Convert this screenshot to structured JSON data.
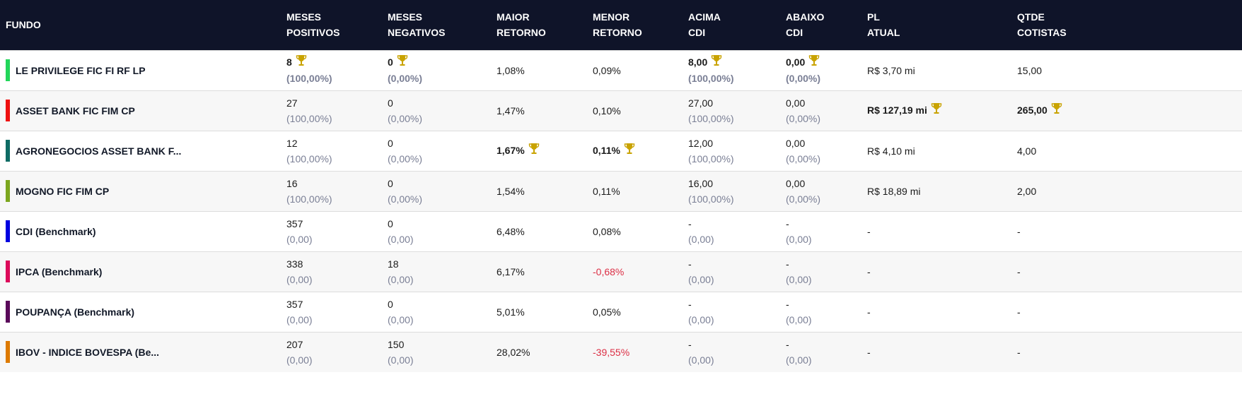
{
  "colors": {
    "header_bg": "#0f1429",
    "trophy": "#c9a300",
    "negative": "#dc2f45"
  },
  "headers": [
    {
      "l1": "FUNDO",
      "l2": ""
    },
    {
      "l1": "MESES",
      "l2": "POSITIVOS"
    },
    {
      "l1": "MESES",
      "l2": "NEGATIVOS"
    },
    {
      "l1": "MAIOR",
      "l2": "RETORNO"
    },
    {
      "l1": "MENOR",
      "l2": "RETORNO"
    },
    {
      "l1": "ACIMA",
      "l2": "CDI"
    },
    {
      "l1": "ABAIXO",
      "l2": "CDI"
    },
    {
      "l1": "PL",
      "l2": "ATUAL"
    },
    {
      "l1": "QTDE",
      "l2": "COTISTAS"
    }
  ],
  "rows": [
    {
      "name": "LE PRIVILEGE FIC FI RF LP",
      "color": "#22d65a",
      "cells": [
        {
          "main": "8",
          "sub": "(100,00%)",
          "bold": true,
          "trophy": true
        },
        {
          "main": "0",
          "sub": "(0,00%)",
          "bold": true,
          "trophy": true
        },
        {
          "main": "1,08%"
        },
        {
          "main": "0,09%"
        },
        {
          "main": "8,00",
          "sub": "(100,00%)",
          "bold": true,
          "trophy": true
        },
        {
          "main": "0,00",
          "sub": "(0,00%)",
          "bold": true,
          "trophy": true
        },
        {
          "main": "R$ 3,70 mi"
        },
        {
          "main": "15,00"
        }
      ]
    },
    {
      "name": "ASSET BANK FIC FIM CP",
      "color": "#ee1111",
      "cells": [
        {
          "main": "27",
          "sub": "(100,00%)"
        },
        {
          "main": "0",
          "sub": "(0,00%)"
        },
        {
          "main": "1,47%"
        },
        {
          "main": "0,10%"
        },
        {
          "main": "27,00",
          "sub": "(100,00%)"
        },
        {
          "main": "0,00",
          "sub": "(0,00%)"
        },
        {
          "main": "R$ 127,19 mi",
          "bold": true,
          "trophy": true
        },
        {
          "main": "265,00",
          "bold": true,
          "trophy": true
        }
      ]
    },
    {
      "name": "AGRONEGOCIOS ASSET BANK F...",
      "color": "#0e6b64",
      "cells": [
        {
          "main": "12",
          "sub": "(100,00%)"
        },
        {
          "main": "0",
          "sub": "(0,00%)"
        },
        {
          "main": "1,67%",
          "bold": true,
          "trophy": true
        },
        {
          "main": "0,11%",
          "bold": true,
          "trophy": true
        },
        {
          "main": "12,00",
          "sub": "(100,00%)"
        },
        {
          "main": "0,00",
          "sub": "(0,00%)"
        },
        {
          "main": "R$ 4,10 mi"
        },
        {
          "main": "4,00"
        }
      ]
    },
    {
      "name": "MOGNO FIC FIM CP",
      "color": "#7ca61e",
      "cells": [
        {
          "main": "16",
          "sub": "(100,00%)"
        },
        {
          "main": "0",
          "sub": "(0,00%)"
        },
        {
          "main": "1,54%"
        },
        {
          "main": "0,11%"
        },
        {
          "main": "16,00",
          "sub": "(100,00%)"
        },
        {
          "main": "0,00",
          "sub": "(0,00%)"
        },
        {
          "main": "R$ 18,89 mi"
        },
        {
          "main": "2,00"
        }
      ]
    },
    {
      "name": "CDI (Benchmark)",
      "color": "#0000e0",
      "cells": [
        {
          "main": "357",
          "sub": "(0,00)"
        },
        {
          "main": "0",
          "sub": "(0,00)"
        },
        {
          "main": "6,48%"
        },
        {
          "main": "0,08%"
        },
        {
          "main": "-",
          "sub": "(0,00)"
        },
        {
          "main": "-",
          "sub": "(0,00)"
        },
        {
          "main": "-"
        },
        {
          "main": "-"
        }
      ]
    },
    {
      "name": "IPCA (Benchmark)",
      "color": "#dc0a5a",
      "cells": [
        {
          "main": "338",
          "sub": "(0,00)"
        },
        {
          "main": "18",
          "sub": "(0,00)"
        },
        {
          "main": "6,17%"
        },
        {
          "main": "-0,68%",
          "red": true
        },
        {
          "main": "-",
          "sub": "(0,00)"
        },
        {
          "main": "-",
          "sub": "(0,00)"
        },
        {
          "main": "-"
        },
        {
          "main": "-"
        }
      ]
    },
    {
      "name": "POUPANÇA (Benchmark)",
      "color": "#5a0a5a",
      "cells": [
        {
          "main": "357",
          "sub": "(0,00)"
        },
        {
          "main": "0",
          "sub": "(0,00)"
        },
        {
          "main": "5,01%"
        },
        {
          "main": "0,05%"
        },
        {
          "main": "-",
          "sub": "(0,00)"
        },
        {
          "main": "-",
          "sub": "(0,00)"
        },
        {
          "main": "-"
        },
        {
          "main": "-"
        }
      ]
    },
    {
      "name": "IBOV - INDICE BOVESPA (Be...",
      "color": "#dd7a00",
      "cells": [
        {
          "main": "207",
          "sub": "(0,00)"
        },
        {
          "main": "150",
          "sub": "(0,00)"
        },
        {
          "main": "28,02%"
        },
        {
          "main": "-39,55%",
          "red": true
        },
        {
          "main": "-",
          "sub": "(0,00)"
        },
        {
          "main": "-",
          "sub": "(0,00)"
        },
        {
          "main": "-"
        },
        {
          "main": "-"
        }
      ]
    }
  ]
}
